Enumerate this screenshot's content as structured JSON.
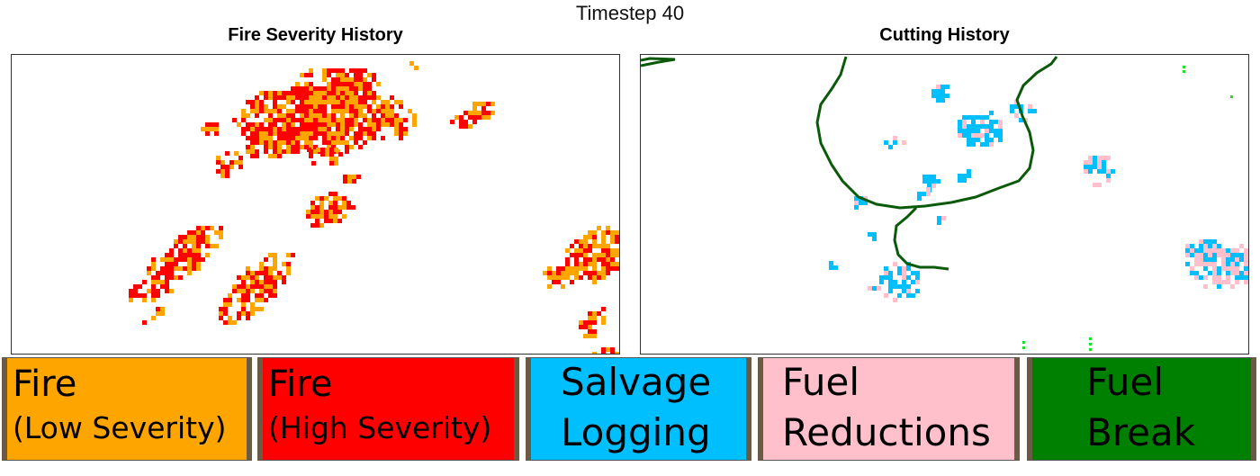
{
  "header": {
    "title": "Timestep 40"
  },
  "panels": {
    "fire": {
      "title": "Fire Severity History"
    },
    "cutting": {
      "title": "Cutting History"
    }
  },
  "legend": {
    "fire_low": {
      "line1": "Fire",
      "line2": "(Low Severity)",
      "color": "#ffa500"
    },
    "fire_high": {
      "line1": "Fire",
      "line2": "(High Severity)",
      "color": "#ff0000"
    },
    "salvage": {
      "line1": "Salvage",
      "line2": "Logging",
      "color": "#00bfff"
    },
    "fuel_red": {
      "line1": "Fuel",
      "line2": "Reductions",
      "color": "#ffc0cb"
    },
    "fuel_break": {
      "line1": "Fuel",
      "line2": "Break",
      "color": "#008000"
    }
  },
  "colors": {
    "low_severity": "#ffa500",
    "high_severity": "#ff0000",
    "salvage": "#00bfff",
    "fuel_reduction": "#ffc0cb",
    "fuel_break_line": "#0a5a0a",
    "fuel_break_dots": "#22dd22"
  }
}
